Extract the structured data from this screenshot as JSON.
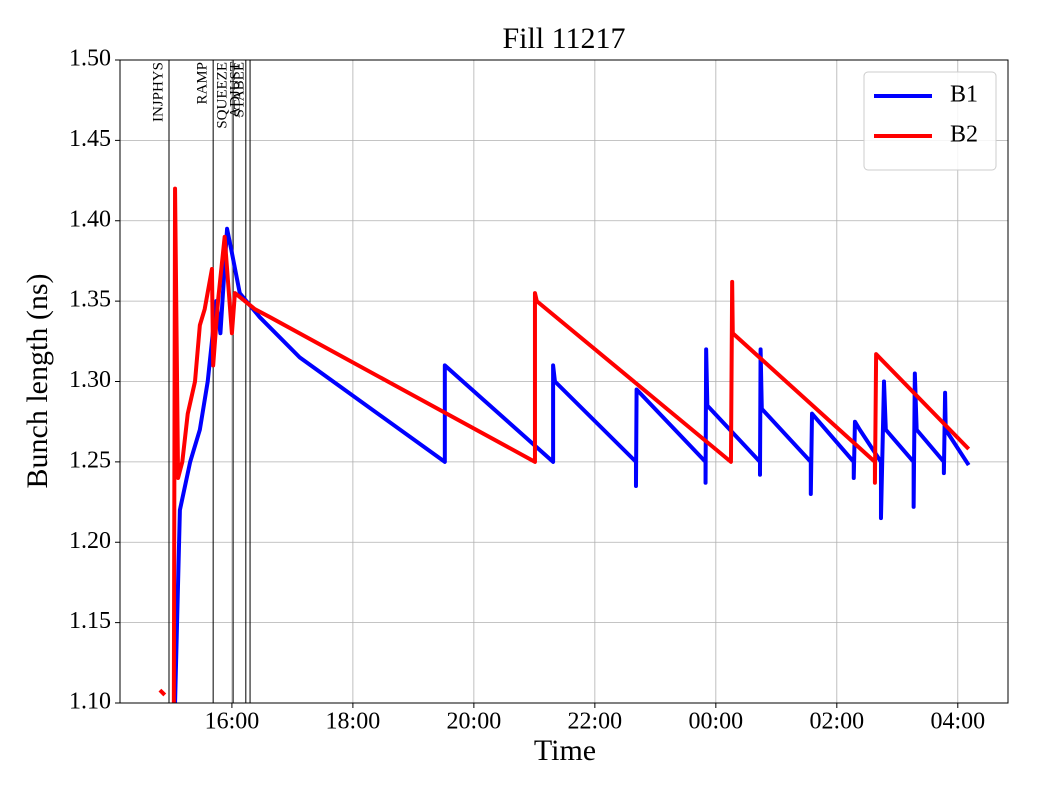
{
  "chart_data": {
    "type": "line",
    "title": "Fill 11217",
    "x_label": "Time",
    "y_label": "Bunch length (ns)",
    "xlim": [
      14.15,
      28.83
    ],
    "xticks": [
      {
        "value": 16,
        "label": "16:00"
      },
      {
        "value": 18,
        "label": "18:00"
      },
      {
        "value": 20,
        "label": "20:00"
      },
      {
        "value": 22,
        "label": "22:00"
      },
      {
        "value": 24,
        "label": "00:00"
      },
      {
        "value": 26,
        "label": "02:00"
      },
      {
        "value": 28,
        "label": "04:00"
      }
    ],
    "ylim": [
      1.1,
      1.5
    ],
    "yticks": [
      {
        "value": 1.1,
        "label": "1.10"
      },
      1.15,
      {
        "value": 1.2,
        "label": "1.20"
      },
      1.25,
      {
        "value": 1.3,
        "label": "1.30"
      },
      1.35,
      {
        "value": 1.4,
        "label": "1.40"
      },
      1.45,
      {
        "value": 1.5,
        "label": "1.50"
      }
    ],
    "grid": true,
    "legend": "upper right",
    "events": [
      {
        "label": "INJPHYS",
        "x": 14.96
      },
      {
        "label": "RAMP",
        "x": 15.69
      },
      {
        "label": "SQUEEZE",
        "x": 16.02
      },
      {
        "label": "ADJUST",
        "x": 16.23
      },
      {
        "label": "STABLE",
        "x": 16.3
      }
    ],
    "series": [
      {
        "name": "B1",
        "color": "#0000ff",
        "x": [
          15.06,
          15.14,
          15.31,
          15.47,
          15.6,
          15.74,
          15.81,
          15.92,
          16.0,
          16.13,
          16.46,
          17.12,
          19.52,
          19.52,
          21.31,
          21.31,
          21.34,
          22.68,
          22.68,
          22.69,
          23.83,
          23.83,
          23.84,
          23.86,
          24.73,
          24.73,
          24.74,
          24.76,
          25.57,
          25.57,
          25.59,
          26.28,
          26.28,
          26.3,
          26.38,
          26.73,
          26.73,
          26.78,
          26.81,
          27.27,
          27.27,
          27.29,
          27.32,
          27.77,
          27.77,
          27.79,
          27.8,
          28.18
        ],
        "values": [
          1.1,
          1.22,
          1.25,
          1.27,
          1.3,
          1.35,
          1.33,
          1.395,
          1.38,
          1.355,
          1.34,
          1.315,
          1.25,
          1.31,
          1.25,
          1.31,
          1.3,
          1.25,
          1.235,
          1.295,
          1.25,
          1.237,
          1.32,
          1.285,
          1.25,
          1.242,
          1.32,
          1.283,
          1.25,
          1.23,
          1.28,
          1.25,
          1.24,
          1.275,
          1.27,
          1.25,
          1.215,
          1.3,
          1.27,
          1.25,
          1.222,
          1.305,
          1.27,
          1.25,
          1.243,
          1.293,
          1.27,
          1.248
        ]
      },
      {
        "name": "B2",
        "color": "#ff0000",
        "x": [
          14.81,
          14.89,
          null,
          15.04,
          15.06,
          15.11,
          15.18,
          15.27,
          15.39,
          15.47,
          15.55,
          15.67,
          15.69,
          15.77,
          15.88,
          16.0,
          16.05,
          16.38,
          16.63,
          21.01,
          21.01,
          21.04,
          24.25,
          24.27,
          24.28,
          26.63,
          26.63,
          26.65,
          28.18
        ],
        "values": [
          1.108,
          1.105,
          null,
          1.1,
          1.42,
          1.24,
          1.25,
          1.28,
          1.3,
          1.335,
          1.345,
          1.37,
          1.31,
          1.35,
          1.39,
          1.33,
          1.355,
          1.345,
          1.34,
          1.25,
          1.355,
          1.35,
          1.25,
          1.362,
          1.33,
          1.25,
          1.237,
          1.317,
          1.258
        ]
      }
    ]
  }
}
